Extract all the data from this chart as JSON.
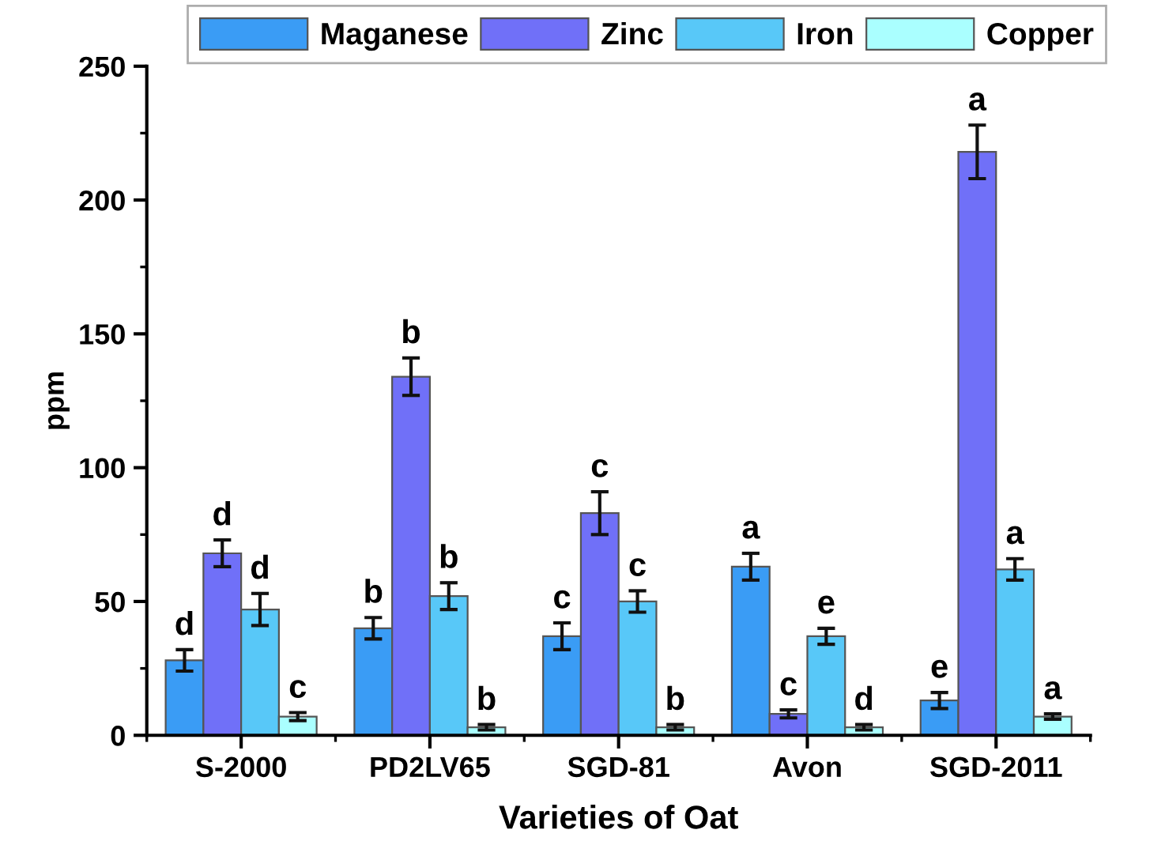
{
  "chart_data": {
    "type": "bar",
    "xlabel": "Varieties of Oat",
    "ylabel": "ppm",
    "categories": [
      "S-2000",
      "PD2LV65",
      "SGD-81",
      "Avon",
      "SGD-2011"
    ],
    "series": [
      {
        "name": "Maganese",
        "color": "#3a9cf5",
        "values": [
          28,
          40,
          37,
          63,
          13
        ],
        "errors": [
          4,
          4,
          5,
          5,
          3
        ],
        "value_labels": [
          "d",
          "b",
          "c",
          "a",
          "e"
        ]
      },
      {
        "name": "Zinc",
        "color": "#7070f8",
        "values": [
          68,
          134,
          83,
          8,
          218
        ],
        "errors": [
          5,
          7,
          8,
          1.5,
          10
        ],
        "value_labels": [
          "d",
          "b",
          "c",
          "c",
          "a"
        ]
      },
      {
        "name": "Iron",
        "color": "#58c8f8",
        "values": [
          47,
          52,
          50,
          37,
          62
        ],
        "errors": [
          6,
          5,
          4,
          3,
          4
        ],
        "value_labels": [
          "d",
          "b",
          "c",
          "e",
          "a"
        ]
      },
      {
        "name": "Copper",
        "color": "#aaffff",
        "values": [
          7,
          3,
          3,
          3,
          7
        ],
        "errors": [
          1.5,
          1,
          1,
          1,
          1
        ],
        "value_labels": [
          "c",
          "b",
          "b",
          "d",
          "a"
        ]
      }
    ],
    "ylim": [
      0,
      250
    ],
    "yticks": [
      0,
      50,
      100,
      150,
      200,
      250
    ],
    "grid": false,
    "legend": "top"
  }
}
